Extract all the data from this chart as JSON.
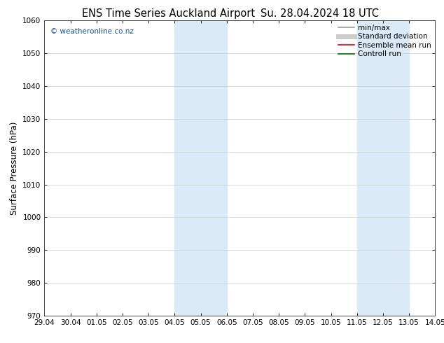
{
  "title_left": "ENS Time Series Auckland Airport",
  "title_right": "Su. 28.04.2024 18 UTC",
  "ylabel": "Surface Pressure (hPa)",
  "ylim": [
    970,
    1060
  ],
  "yticks": [
    970,
    980,
    990,
    1000,
    1010,
    1020,
    1030,
    1040,
    1050,
    1060
  ],
  "xtick_labels": [
    "29.04",
    "30.04",
    "01.05",
    "02.05",
    "03.05",
    "04.05",
    "05.05",
    "06.05",
    "07.05",
    "08.05",
    "09.05",
    "10.05",
    "11.05",
    "12.05",
    "13.05",
    "14.05"
  ],
  "xlim": [
    0,
    15
  ],
  "shaded_bands": [
    {
      "xmin": 5,
      "xmax": 7
    },
    {
      "xmin": 12,
      "xmax": 14
    }
  ],
  "shade_color": "#daeaf6",
  "background_color": "#ffffff",
  "watermark_text": "© weatheronline.co.nz",
  "watermark_color": "#1155aa",
  "legend_items": [
    {
      "label": "min/max",
      "color": "#999999",
      "lw": 1.2
    },
    {
      "label": "Standard deviation",
      "color": "#cccccc",
      "lw": 5
    },
    {
      "label": "Ensemble mean run",
      "color": "#ee0000",
      "lw": 1.2
    },
    {
      "label": "Controll run",
      "color": "#007700",
      "lw": 1.2
    }
  ],
  "grid_color": "#cccccc",
  "tick_label_fontsize": 7.5,
  "axis_label_fontsize": 8.5,
  "title_fontsize": 10.5,
  "legend_fontsize": 7.5
}
